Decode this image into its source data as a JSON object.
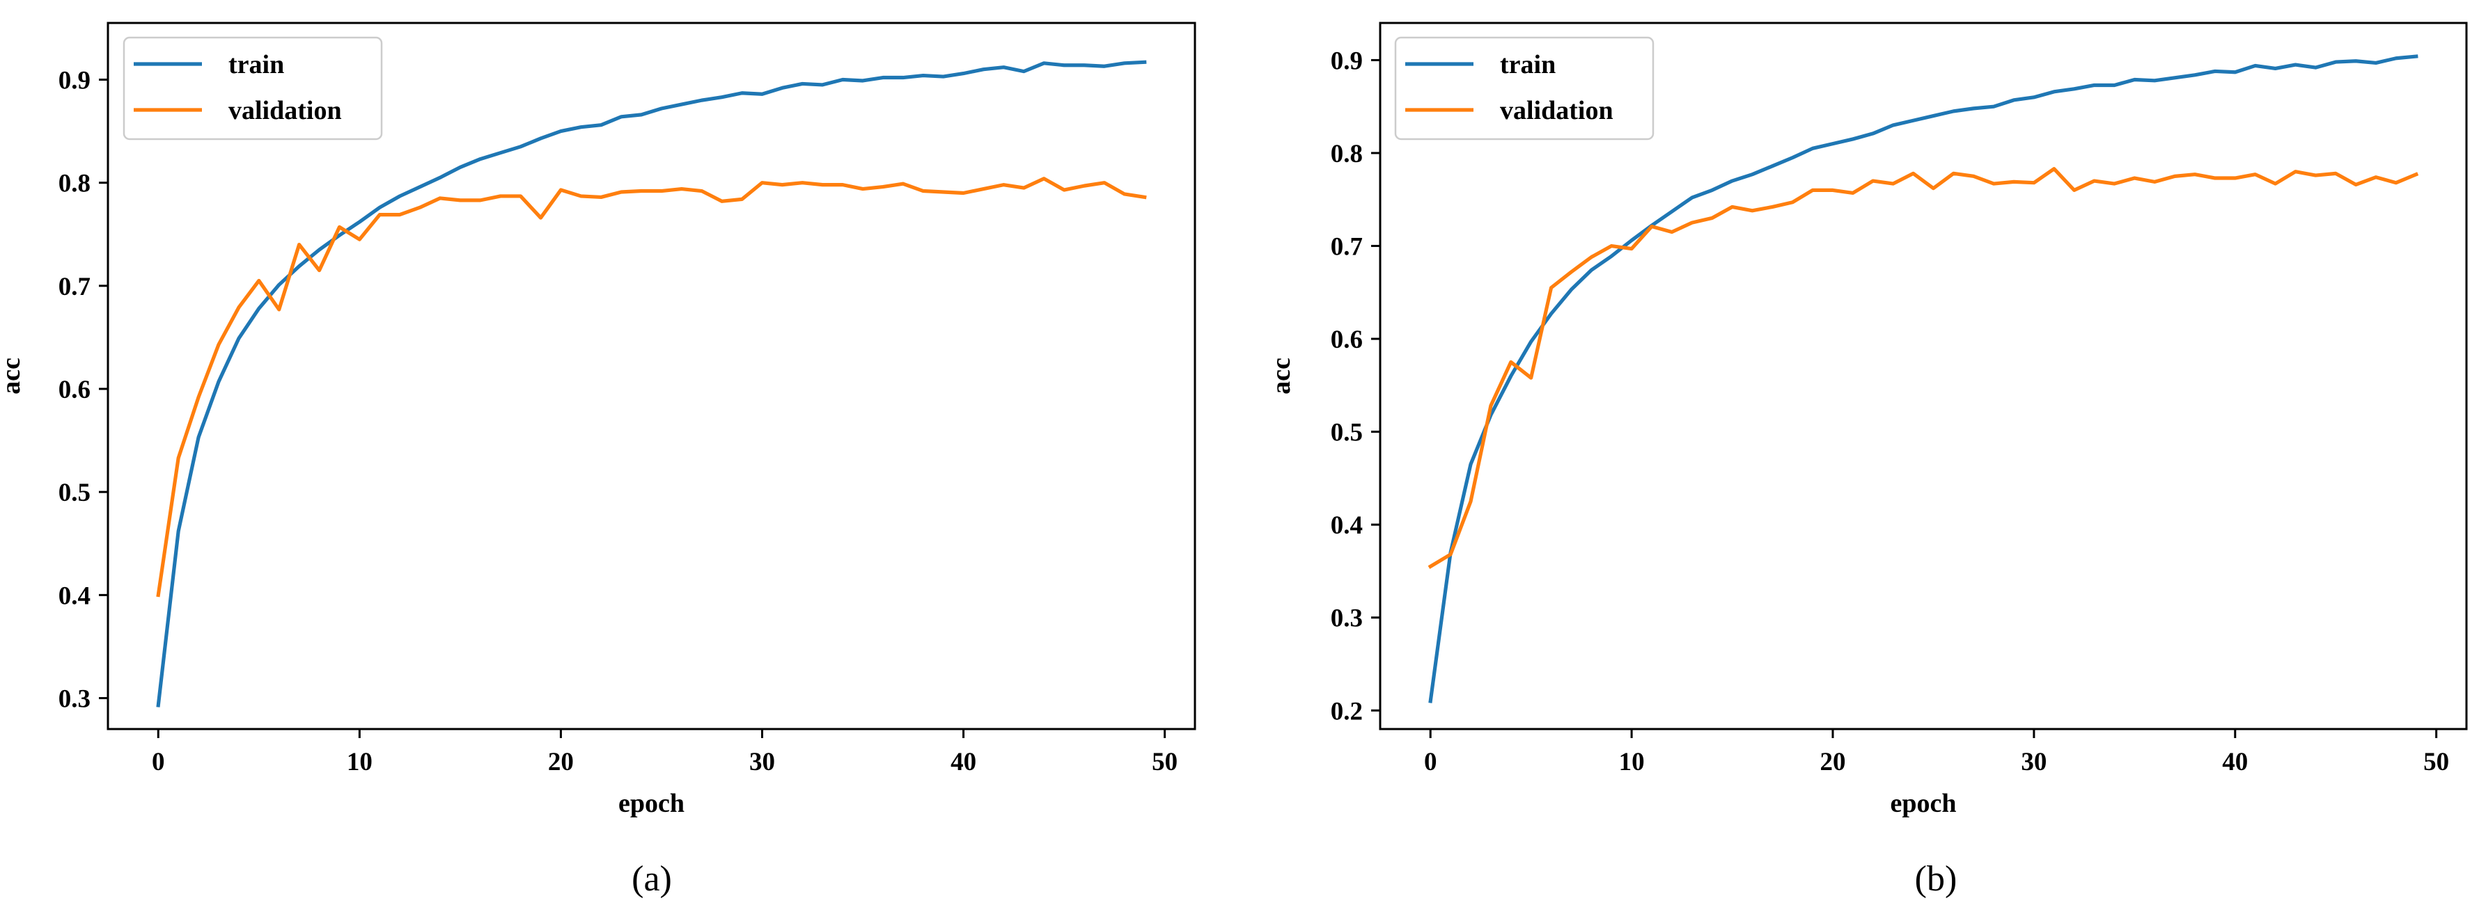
{
  "chart_data": [
    {
      "type": "line",
      "caption": "(a)",
      "xlabel": "epoch",
      "ylabel": "acc",
      "xlim": [
        -2.5,
        51.5
      ],
      "ylim": [
        0.27,
        0.955
      ],
      "xticks": [
        0,
        10,
        20,
        30,
        40,
        50
      ],
      "yticks": [
        0.3,
        0.4,
        0.5,
        0.6,
        0.7,
        0.8,
        0.9
      ],
      "grid": false,
      "legend_position": "top-left",
      "series": [
        {
          "name": "train",
          "color": "#1f77b4",
          "x": [
            0,
            1,
            2,
            3,
            4,
            5,
            6,
            7,
            8,
            9,
            10,
            11,
            12,
            13,
            14,
            15,
            16,
            17,
            18,
            19,
            20,
            21,
            22,
            23,
            24,
            25,
            26,
            27,
            28,
            29,
            30,
            31,
            32,
            33,
            34,
            35,
            36,
            37,
            38,
            39,
            40,
            41,
            42,
            43,
            44,
            45,
            46,
            47,
            48,
            49
          ],
          "y": [
            0.293,
            0.462,
            0.553,
            0.607,
            0.649,
            0.678,
            0.701,
            0.719,
            0.735,
            0.749,
            0.762,
            0.776,
            0.787,
            0.796,
            0.805,
            0.815,
            0.823,
            0.829,
            0.835,
            0.843,
            0.85,
            0.854,
            0.856,
            0.864,
            0.866,
            0.872,
            0.876,
            0.88,
            0.883,
            0.887,
            0.886,
            0.892,
            0.896,
            0.895,
            0.9,
            0.899,
            0.902,
            0.902,
            0.904,
            0.903,
            0.906,
            0.91,
            0.912,
            0.908,
            0.916,
            0.914,
            0.914,
            0.913,
            0.916,
            0.917
          ]
        },
        {
          "name": "validation",
          "color": "#ff7f0e",
          "x": [
            0,
            1,
            2,
            3,
            4,
            5,
            6,
            7,
            8,
            9,
            10,
            11,
            12,
            13,
            14,
            15,
            16,
            17,
            18,
            19,
            20,
            21,
            22,
            23,
            24,
            25,
            26,
            27,
            28,
            29,
            30,
            31,
            32,
            33,
            34,
            35,
            36,
            37,
            38,
            39,
            40,
            41,
            42,
            43,
            44,
            45,
            46,
            47,
            48,
            49
          ],
          "y": [
            0.4,
            0.533,
            0.592,
            0.643,
            0.679,
            0.705,
            0.677,
            0.74,
            0.715,
            0.757,
            0.745,
            0.769,
            0.769,
            0.776,
            0.785,
            0.783,
            0.783,
            0.787,
            0.787,
            0.766,
            0.793,
            0.787,
            0.786,
            0.791,
            0.792,
            0.792,
            0.794,
            0.792,
            0.782,
            0.784,
            0.8,
            0.798,
            0.8,
            0.798,
            0.798,
            0.794,
            0.796,
            0.799,
            0.792,
            0.791,
            0.79,
            0.794,
            0.798,
            0.795,
            0.804,
            0.793,
            0.797,
            0.8,
            0.789,
            0.786
          ]
        }
      ]
    },
    {
      "type": "line",
      "caption": "(b)",
      "xlabel": "epoch",
      "ylabel": "acc",
      "xlim": [
        -2.5,
        51.5
      ],
      "ylim": [
        0.18,
        0.94
      ],
      "xticks": [
        0,
        10,
        20,
        30,
        40,
        50
      ],
      "yticks": [
        0.2,
        0.3,
        0.4,
        0.5,
        0.6,
        0.7,
        0.8,
        0.9
      ],
      "grid": false,
      "legend_position": "top-left",
      "series": [
        {
          "name": "train",
          "color": "#1f77b4",
          "x": [
            0,
            1,
            2,
            3,
            4,
            5,
            6,
            7,
            8,
            9,
            10,
            11,
            12,
            13,
            14,
            15,
            16,
            17,
            18,
            19,
            20,
            21,
            22,
            23,
            24,
            25,
            26,
            27,
            28,
            29,
            30,
            31,
            32,
            33,
            34,
            35,
            36,
            37,
            38,
            39,
            40,
            41,
            42,
            43,
            44,
            45,
            46,
            47,
            48,
            49
          ],
          "y": [
            0.21,
            0.37,
            0.465,
            0.518,
            0.56,
            0.597,
            0.627,
            0.653,
            0.674,
            0.689,
            0.706,
            0.722,
            0.737,
            0.752,
            0.76,
            0.77,
            0.777,
            0.786,
            0.795,
            0.805,
            0.81,
            0.815,
            0.821,
            0.83,
            0.835,
            0.84,
            0.845,
            0.848,
            0.85,
            0.857,
            0.86,
            0.866,
            0.869,
            0.873,
            0.873,
            0.879,
            0.878,
            0.881,
            0.884,
            0.888,
            0.887,
            0.894,
            0.891,
            0.895,
            0.892,
            0.898,
            0.899,
            0.897,
            0.902,
            0.904
          ]
        },
        {
          "name": "validation",
          "color": "#ff7f0e",
          "x": [
            0,
            1,
            2,
            3,
            4,
            5,
            6,
            7,
            8,
            9,
            10,
            11,
            12,
            13,
            14,
            15,
            16,
            17,
            18,
            19,
            20,
            21,
            22,
            23,
            24,
            25,
            26,
            27,
            28,
            29,
            30,
            31,
            32,
            33,
            34,
            35,
            36,
            37,
            38,
            39,
            40,
            41,
            42,
            43,
            44,
            45,
            46,
            47,
            48,
            49
          ],
          "y": [
            0.355,
            0.368,
            0.425,
            0.528,
            0.575,
            0.558,
            0.655,
            0.672,
            0.688,
            0.7,
            0.697,
            0.721,
            0.715,
            0.725,
            0.73,
            0.742,
            0.738,
            0.742,
            0.747,
            0.76,
            0.76,
            0.757,
            0.77,
            0.767,
            0.778,
            0.762,
            0.778,
            0.775,
            0.767,
            0.769,
            0.768,
            0.783,
            0.76,
            0.77,
            0.767,
            0.773,
            0.769,
            0.775,
            0.777,
            0.773,
            0.773,
            0.777,
            0.767,
            0.78,
            0.776,
            0.778,
            0.766,
            0.774,
            0.768,
            0.777
          ]
        }
      ]
    }
  ]
}
